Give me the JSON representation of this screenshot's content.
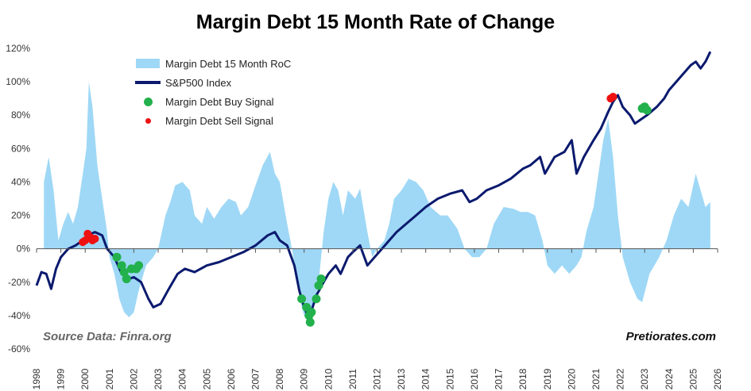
{
  "chart_data": {
    "type": "area+line+scatter",
    "title": "Margin Debt 15 Month Rate of Change",
    "xlabel": "",
    "ylabel": "",
    "xlim": [
      1998,
      2026
    ],
    "ylim": [
      -60,
      120
    ],
    "y_ticks": [
      "120%",
      "100%",
      "80%",
      "60%",
      "40%",
      "20%",
      "0%",
      "-20%",
      "-40%",
      "-60%"
    ],
    "x_ticks": [
      "1998",
      "1999",
      "2000",
      "2001",
      "2002",
      "2003",
      "2004",
      "2005",
      "2006",
      "2007",
      "2008",
      "2009",
      "2010",
      "2011",
      "2012",
      "2013",
      "2014",
      "2015",
      "2016",
      "2017",
      "2018",
      "2019",
      "2020",
      "2021",
      "2022",
      "2023",
      "2024",
      "2025",
      "2026"
    ],
    "grid": false,
    "legend_position": "top-left",
    "colors": {
      "roc": "#9fd8f6",
      "sp500": "#0b1a6e",
      "buy": "#22b14c",
      "sell": "#ee1111"
    },
    "series": [
      {
        "name": "Margin Debt 15 Month RoC",
        "style": "area",
        "points": [
          [
            1998.3,
            40
          ],
          [
            1998.5,
            55
          ],
          [
            1998.7,
            35
          ],
          [
            1998.9,
            5
          ],
          [
            1999.1,
            15
          ],
          [
            1999.3,
            22
          ],
          [
            1999.5,
            15
          ],
          [
            1999.7,
            25
          ],
          [
            1999.9,
            45
          ],
          [
            2000.05,
            60
          ],
          [
            2000.15,
            100
          ],
          [
            2000.3,
            85
          ],
          [
            2000.5,
            50
          ],
          [
            2000.7,
            30
          ],
          [
            2000.9,
            10
          ],
          [
            2001.0,
            -5
          ],
          [
            2001.2,
            -15
          ],
          [
            2001.4,
            -30
          ],
          [
            2001.6,
            -38
          ],
          [
            2001.8,
            -41
          ],
          [
            2002.0,
            -38
          ],
          [
            2002.2,
            -25
          ],
          [
            2002.5,
            -10
          ],
          [
            2002.8,
            -5
          ],
          [
            2003.0,
            0
          ],
          [
            2003.3,
            20
          ],
          [
            2003.5,
            28
          ],
          [
            2003.7,
            38
          ],
          [
            2004.0,
            40
          ],
          [
            2004.3,
            35
          ],
          [
            2004.5,
            20
          ],
          [
            2004.8,
            15
          ],
          [
            2005.0,
            25
          ],
          [
            2005.3,
            18
          ],
          [
            2005.6,
            25
          ],
          [
            2005.9,
            30
          ],
          [
            2006.2,
            28
          ],
          [
            2006.4,
            20
          ],
          [
            2006.7,
            25
          ],
          [
            2007.0,
            38
          ],
          [
            2007.3,
            50
          ],
          [
            2007.6,
            58
          ],
          [
            2007.8,
            45
          ],
          [
            2008.0,
            40
          ],
          [
            2008.3,
            15
          ],
          [
            2008.5,
            0
          ],
          [
            2008.7,
            -20
          ],
          [
            2008.9,
            -35
          ],
          [
            2009.0,
            -40
          ],
          [
            2009.2,
            -45
          ],
          [
            2009.4,
            -35
          ],
          [
            2009.6,
            -20
          ],
          [
            2009.8,
            10
          ],
          [
            2010.0,
            30
          ],
          [
            2010.2,
            40
          ],
          [
            2010.4,
            35
          ],
          [
            2010.6,
            20
          ],
          [
            2010.8,
            35
          ],
          [
            2011.1,
            30
          ],
          [
            2011.3,
            36
          ],
          [
            2011.6,
            10
          ],
          [
            2011.8,
            -5
          ],
          [
            2012.0,
            0
          ],
          [
            2012.3,
            5
          ],
          [
            2012.5,
            15
          ],
          [
            2012.7,
            30
          ],
          [
            2013.0,
            35
          ],
          [
            2013.3,
            42
          ],
          [
            2013.6,
            40
          ],
          [
            2013.9,
            35
          ],
          [
            2014.2,
            25
          ],
          [
            2014.6,
            20
          ],
          [
            2014.9,
            20
          ],
          [
            2015.3,
            12
          ],
          [
            2015.6,
            0
          ],
          [
            2015.9,
            -5
          ],
          [
            2016.2,
            -5
          ],
          [
            2016.5,
            0
          ],
          [
            2016.8,
            15
          ],
          [
            2017.2,
            25
          ],
          [
            2017.6,
            24
          ],
          [
            2017.9,
            22
          ],
          [
            2018.2,
            22
          ],
          [
            2018.5,
            20
          ],
          [
            2018.8,
            5
          ],
          [
            2019.0,
            -10
          ],
          [
            2019.3,
            -15
          ],
          [
            2019.6,
            -10
          ],
          [
            2019.9,
            -15
          ],
          [
            2020.2,
            -10
          ],
          [
            2020.4,
            -5
          ],
          [
            2020.6,
            10
          ],
          [
            2020.9,
            25
          ],
          [
            2021.1,
            45
          ],
          [
            2021.3,
            65
          ],
          [
            2021.5,
            78
          ],
          [
            2021.7,
            55
          ],
          [
            2021.9,
            20
          ],
          [
            2022.1,
            -5
          ],
          [
            2022.4,
            -20
          ],
          [
            2022.7,
            -30
          ],
          [
            2022.9,
            -32
          ],
          [
            2023.2,
            -15
          ],
          [
            2023.6,
            -5
          ],
          [
            2023.9,
            5
          ],
          [
            2024.2,
            20
          ],
          [
            2024.5,
            30
          ],
          [
            2024.8,
            25
          ],
          [
            2025.1,
            45
          ],
          [
            2025.3,
            35
          ],
          [
            2025.5,
            25
          ],
          [
            2025.7,
            28
          ]
        ]
      },
      {
        "name": "S&P500 Index",
        "style": "line",
        "points": [
          [
            1998.0,
            -22
          ],
          [
            1998.2,
            -14
          ],
          [
            1998.4,
            -15
          ],
          [
            1998.6,
            -24
          ],
          [
            1998.8,
            -12
          ],
          [
            1999.0,
            -5
          ],
          [
            1999.3,
            0
          ],
          [
            1999.6,
            2
          ],
          [
            1999.9,
            5
          ],
          [
            2000.1,
            8
          ],
          [
            2000.4,
            10
          ],
          [
            2000.7,
            8
          ],
          [
            2000.9,
            0
          ],
          [
            2001.2,
            -5
          ],
          [
            2001.5,
            -15
          ],
          [
            2001.8,
            -18
          ],
          [
            2002.0,
            -17
          ],
          [
            2002.3,
            -20
          ],
          [
            2002.6,
            -30
          ],
          [
            2002.8,
            -35
          ],
          [
            2003.1,
            -33
          ],
          [
            2003.4,
            -25
          ],
          [
            2003.8,
            -15
          ],
          [
            2004.1,
            -12
          ],
          [
            2004.5,
            -14
          ],
          [
            2005.0,
            -10
          ],
          [
            2005.5,
            -8
          ],
          [
            2006.0,
            -5
          ],
          [
            2006.5,
            -2
          ],
          [
            2007.0,
            2
          ],
          [
            2007.5,
            8
          ],
          [
            2007.8,
            10
          ],
          [
            2008.0,
            5
          ],
          [
            2008.3,
            2
          ],
          [
            2008.6,
            -10
          ],
          [
            2008.8,
            -25
          ],
          [
            2009.0,
            -35
          ],
          [
            2009.2,
            -42
          ],
          [
            2009.5,
            -28
          ],
          [
            2009.8,
            -20
          ],
          [
            2010.0,
            -15
          ],
          [
            2010.3,
            -10
          ],
          [
            2010.5,
            -15
          ],
          [
            2010.8,
            -5
          ],
          [
            2011.0,
            -2
          ],
          [
            2011.3,
            2
          ],
          [
            2011.6,
            -10
          ],
          [
            2011.9,
            -5
          ],
          [
            2012.2,
            0
          ],
          [
            2012.5,
            5
          ],
          [
            2012.8,
            10
          ],
          [
            2013.2,
            15
          ],
          [
            2013.6,
            20
          ],
          [
            2014.0,
            25
          ],
          [
            2014.5,
            30
          ],
          [
            2015.0,
            33
          ],
          [
            2015.5,
            35
          ],
          [
            2015.8,
            28
          ],
          [
            2016.1,
            30
          ],
          [
            2016.5,
            35
          ],
          [
            2017.0,
            38
          ],
          [
            2017.5,
            42
          ],
          [
            2018.0,
            48
          ],
          [
            2018.3,
            50
          ],
          [
            2018.7,
            55
          ],
          [
            2018.9,
            45
          ],
          [
            2019.3,
            55
          ],
          [
            2019.7,
            58
          ],
          [
            2020.0,
            65
          ],
          [
            2020.2,
            45
          ],
          [
            2020.5,
            55
          ],
          [
            2020.9,
            65
          ],
          [
            2021.2,
            72
          ],
          [
            2021.5,
            82
          ],
          [
            2021.7,
            88
          ],
          [
            2021.9,
            92
          ],
          [
            2022.1,
            85
          ],
          [
            2022.4,
            80
          ],
          [
            2022.6,
            75
          ],
          [
            2022.8,
            77
          ],
          [
            2023.1,
            80
          ],
          [
            2023.5,
            85
          ],
          [
            2023.8,
            90
          ],
          [
            2024.0,
            95
          ],
          [
            2024.3,
            100
          ],
          [
            2024.6,
            105
          ],
          [
            2024.9,
            110
          ],
          [
            2025.1,
            112
          ],
          [
            2025.3,
            108
          ],
          [
            2025.5,
            112
          ],
          [
            2025.7,
            118
          ]
        ]
      },
      {
        "name": "Margin Debt Buy Signal",
        "style": "scatter",
        "points": [
          [
            2001.3,
            -5
          ],
          [
            2001.5,
            -10
          ],
          [
            2001.6,
            -14
          ],
          [
            2001.7,
            -18
          ],
          [
            2001.9,
            -12
          ],
          [
            2002.1,
            -12
          ],
          [
            2002.2,
            -10
          ],
          [
            2008.9,
            -30
          ],
          [
            2009.1,
            -35
          ],
          [
            2009.2,
            -40
          ],
          [
            2009.25,
            -44
          ],
          [
            2009.3,
            -38
          ],
          [
            2009.5,
            -30
          ],
          [
            2009.6,
            -22
          ],
          [
            2009.7,
            -18
          ],
          [
            2022.9,
            84
          ],
          [
            2023.0,
            85
          ],
          [
            2023.1,
            83
          ]
        ]
      },
      {
        "name": "Margin Debt Sell Signal",
        "style": "scatter",
        "points": [
          [
            1999.9,
            4
          ],
          [
            2000.0,
            5
          ],
          [
            2000.1,
            9
          ],
          [
            2000.2,
            7
          ],
          [
            2000.3,
            5
          ],
          [
            2000.4,
            6
          ],
          [
            2021.6,
            90
          ],
          [
            2021.7,
            91
          ]
        ]
      }
    ]
  },
  "source_text": "Source Data: Finra.org",
  "brand_text": "Pretiorates.com"
}
